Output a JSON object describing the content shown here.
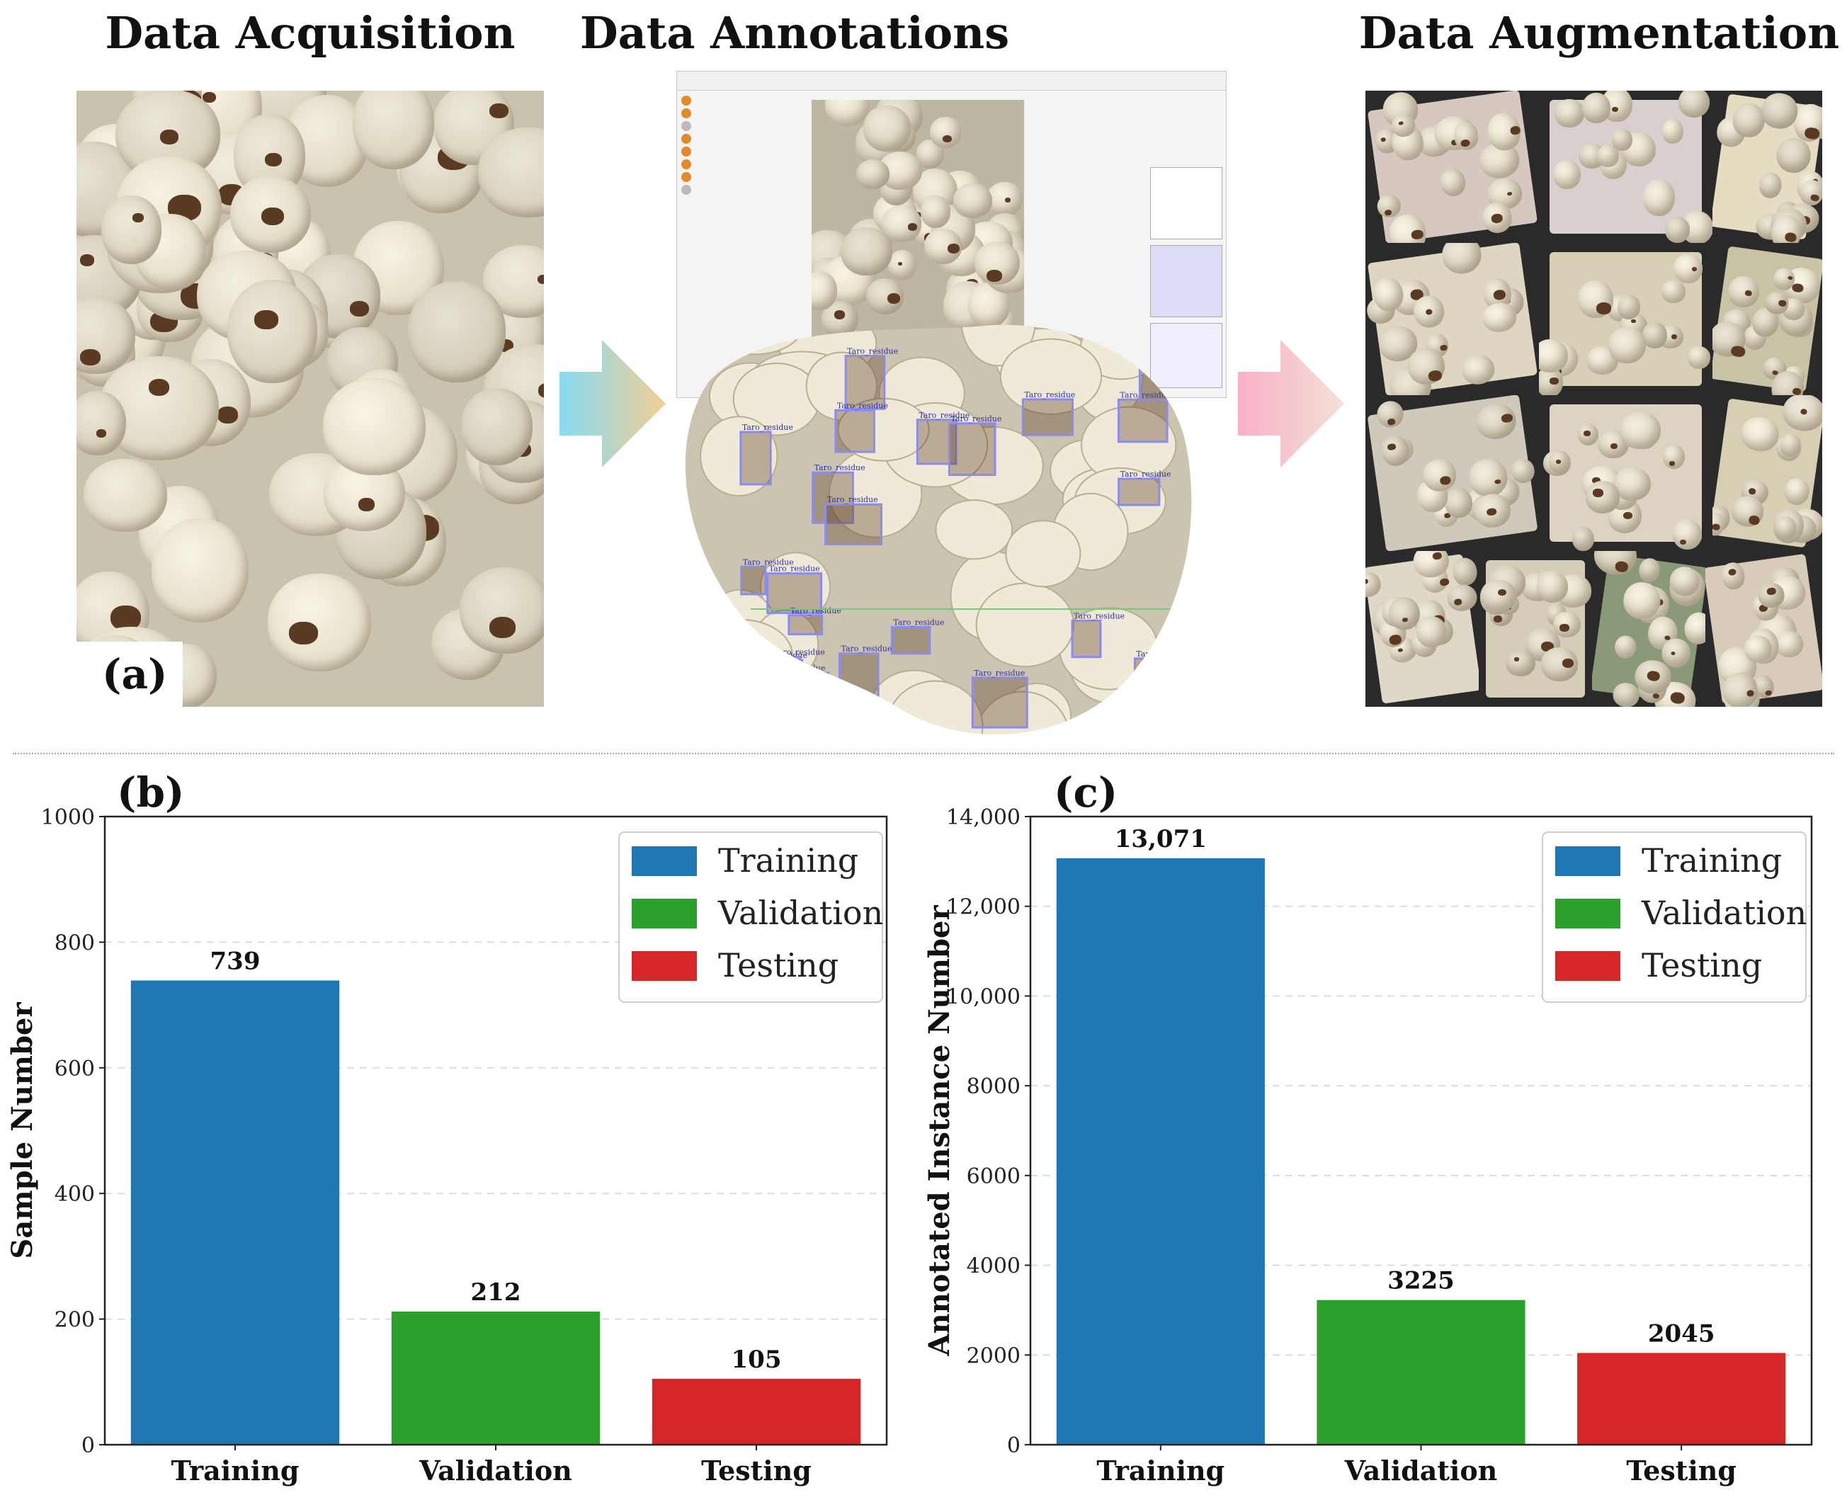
{
  "figure": {
    "sections": [
      {
        "title": "Data Acquisition"
      },
      {
        "title": "Data Annotations"
      },
      {
        "title": "Data Augmentation"
      }
    ],
    "panel_a_label": "(a)",
    "annotation_label": "Taro_residue"
  },
  "colors": {
    "training": "#1f77b4",
    "validation": "#2ca02c",
    "testing": "#d62728",
    "arrow_left": "#7ad7f0",
    "arrow_right": "#f3b9cf"
  },
  "chart_data": [
    {
      "type": "bar",
      "panel": "(b)",
      "title": "",
      "categories": [
        "Training",
        "Validation",
        "Testing"
      ],
      "values": [
        739,
        212,
        105
      ],
      "value_labels": [
        "739",
        "212",
        "105"
      ],
      "xlabel": "",
      "ylabel": "Sample Number",
      "ylim": [
        0,
        1000
      ],
      "yticks": [
        0,
        200,
        400,
        600,
        800,
        1000
      ],
      "ytick_labels": [
        "0",
        "200",
        "400",
        "600",
        "800",
        "1000"
      ],
      "grid": "horizontal dashed",
      "legend": {
        "position": "top-right",
        "entries": [
          "Training",
          "Validation",
          "Testing"
        ]
      }
    },
    {
      "type": "bar",
      "panel": "(c)",
      "title": "",
      "categories": [
        "Training",
        "Validation",
        "Testing"
      ],
      "values": [
        13071,
        3225,
        2045
      ],
      "value_labels": [
        "13,071",
        "3225",
        "2045"
      ],
      "xlabel": "",
      "ylabel": "Annotated Instance Number",
      "ylim": [
        0,
        14000
      ],
      "yticks": [
        0,
        2000,
        4000,
        6000,
        8000,
        10000,
        12000,
        14000
      ],
      "ytick_labels": [
        "0",
        "2000",
        "4000",
        "6000",
        "8000",
        "10,000",
        "12,000",
        "14,000"
      ],
      "grid": "horizontal dashed",
      "legend": {
        "position": "top-right",
        "entries": [
          "Training",
          "Validation",
          "Testing"
        ]
      }
    }
  ]
}
